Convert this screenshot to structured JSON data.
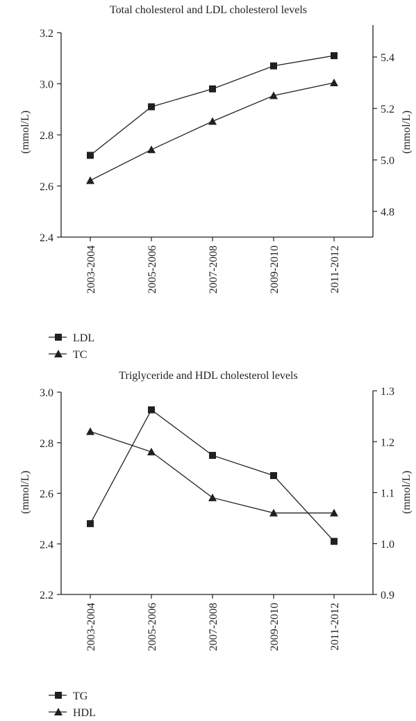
{
  "chart_data": [
    {
      "type": "line",
      "title": "Total cholesterol and LDL cholesterol levels",
      "categories": [
        "2003-2004",
        "2005-2006",
        "2007-2008",
        "2009-2010",
        "2011-2012"
      ],
      "ylabel_left": "(mmol/L)",
      "ylabel_right": "(mmol/L)",
      "ylim_left": [
        2.4,
        3.2
      ],
      "yticks_left": [
        "2.4",
        "2.6",
        "2.8",
        "3.0",
        "3.2"
      ],
      "ylim_right": [
        4.7,
        5.52
      ],
      "yticks_right": [
        "4.8",
        "5.0",
        "5.2",
        "5.4"
      ],
      "grid": false,
      "legend_position": "bottom-left",
      "series": [
        {
          "name": "LDL",
          "axis": "left",
          "marker": "square",
          "values": [
            2.72,
            2.91,
            2.98,
            3.07,
            3.11
          ]
        },
        {
          "name": "TC",
          "axis": "right",
          "marker": "triangle",
          "values": [
            4.92,
            5.04,
            5.15,
            5.25,
            5.3
          ]
        }
      ]
    },
    {
      "type": "line",
      "title": "Triglyceride and HDL cholesterol levels",
      "categories": [
        "2003-2004",
        "2005-2006",
        "2007-2008",
        "2009-2010",
        "2011-2012"
      ],
      "ylabel_left": "(mmol/L)",
      "ylabel_right": "(mmol/L)",
      "ylim_left": [
        2.2,
        3.0
      ],
      "yticks_left": [
        "2.2",
        "2.4",
        "2.6",
        "2.8",
        "3.0"
      ],
      "ylim_right": [
        0.9,
        1.3
      ],
      "yticks_right": [
        "0.9",
        "1.0",
        "1.1",
        "1.2",
        "1.3"
      ],
      "grid": false,
      "legend_position": "bottom-left",
      "series": [
        {
          "name": "TG",
          "axis": "left",
          "marker": "square",
          "values": [
            2.48,
            2.93,
            2.75,
            2.67,
            2.41
          ]
        },
        {
          "name": "HDL",
          "axis": "right",
          "marker": "triangle",
          "values": [
            1.22,
            1.18,
            1.09,
            1.06,
            1.06
          ]
        }
      ]
    }
  ]
}
